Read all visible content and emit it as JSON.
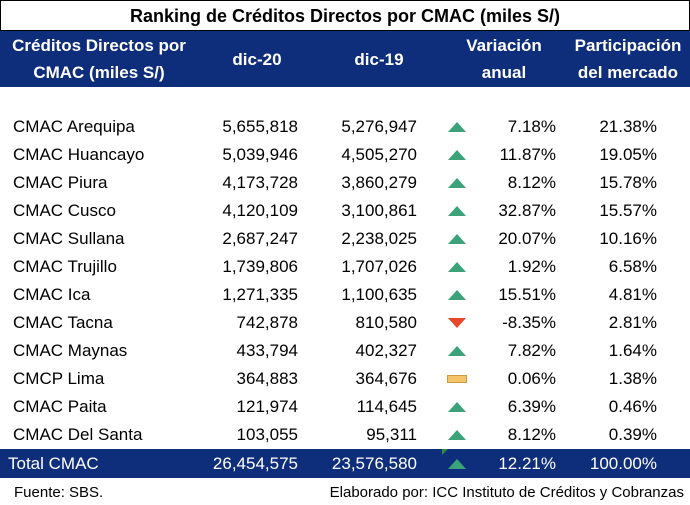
{
  "title": "Ranking de Créditos Directos por CMAC (miles S/)",
  "headers": {
    "name_line1": "Créditos Directos por",
    "name_line2": "CMAC (miles S/)",
    "dic20": "dic-20",
    "dic19": "dic-19",
    "var_line1": "Variación",
    "var_line2": "anual",
    "part_line1": "Participación",
    "part_line2": "del mercado"
  },
  "rows": [
    {
      "name": "CMAC Arequipa",
      "dic20": "5,655,818",
      "dic19": "5,276,947",
      "trend": "up-icon",
      "var": "7.18%",
      "part": "21.38%"
    },
    {
      "name": "CMAC Huancayo",
      "dic20": "5,039,946",
      "dic19": "4,505,270",
      "trend": "up-icon",
      "var": "11.87%",
      "part": "19.05%"
    },
    {
      "name": "CMAC Piura",
      "dic20": "4,173,728",
      "dic19": "3,860,279",
      "trend": "up-icon",
      "var": "8.12%",
      "part": "15.78%"
    },
    {
      "name": "CMAC Cusco",
      "dic20": "4,120,109",
      "dic19": "3,100,861",
      "trend": "up-icon",
      "var": "32.87%",
      "part": "15.57%"
    },
    {
      "name": "CMAC Sullana",
      "dic20": "2,687,247",
      "dic19": "2,238,025",
      "trend": "up-icon",
      "var": "20.07%",
      "part": "10.16%"
    },
    {
      "name": "CMAC Trujillo",
      "dic20": "1,739,806",
      "dic19": "1,707,026",
      "trend": "up-icon",
      "var": "1.92%",
      "part": "6.58%"
    },
    {
      "name": "CMAC Ica",
      "dic20": "1,271,335",
      "dic19": "1,100,635",
      "trend": "up-icon",
      "var": "15.51%",
      "part": "4.81%"
    },
    {
      "name": "CMAC Tacna",
      "dic20": "742,878",
      "dic19": "810,580",
      "trend": "down-icon",
      "var": "-8.35%",
      "part": "2.81%"
    },
    {
      "name": "CMAC Maynas",
      "dic20": "433,794",
      "dic19": "402,327",
      "trend": "up-icon",
      "var": "7.82%",
      "part": "1.64%"
    },
    {
      "name": "CMCP Lima",
      "dic20": "364,883",
      "dic19": "364,676",
      "trend": "flat-icon",
      "var": "0.06%",
      "part": "1.38%"
    },
    {
      "name": "CMAC Paita",
      "dic20": "121,974",
      "dic19": "114,645",
      "trend": "up-icon",
      "var": "6.39%",
      "part": "0.46%"
    },
    {
      "name": "CMAC Del Santa",
      "dic20": "103,055",
      "dic19": "95,311",
      "trend": "up-icon",
      "var": "8.12%",
      "part": "0.39%"
    }
  ],
  "total": {
    "name": "Total CMAC",
    "dic20": "26,454,575",
    "dic19": "23,576,580",
    "trend": "up-icon",
    "var": "12.21%",
    "part": "100.00%"
  },
  "footer": {
    "source": "Fuente: SBS.",
    "credit": "Elaborado por: ICC Instituto de Créditos y Cobranzas"
  },
  "colors": {
    "header_bg": "#0e2d7a",
    "up": "#3aa37a",
    "down": "#e8472a",
    "flat": "#f4c36a"
  }
}
